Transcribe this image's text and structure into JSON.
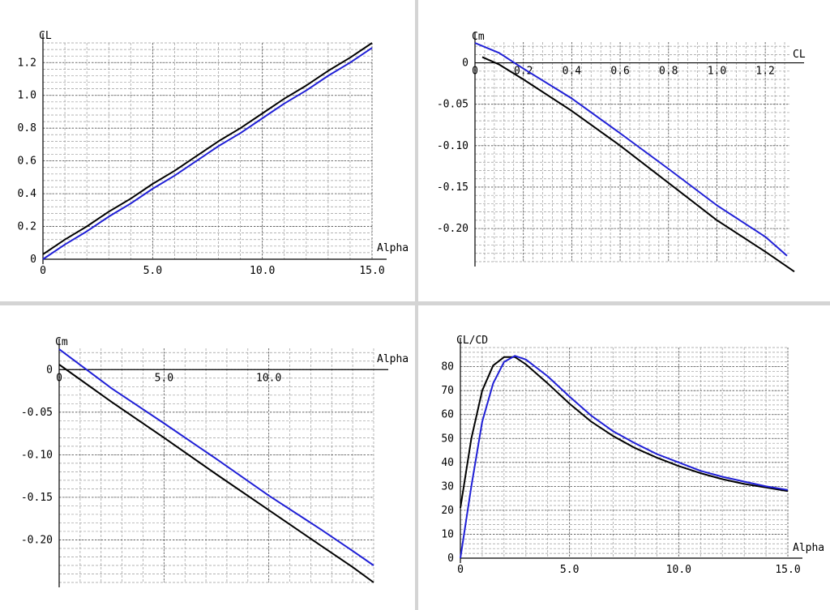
{
  "colors": {
    "series_black": "#000000",
    "series_blue": "#1f1fd6",
    "grid_major": "#555555",
    "grid_minor": "#9a9a9a",
    "background": "#ffffff",
    "separator": "#d4d4d4"
  },
  "chart_data": [
    {
      "id": "cl-alpha",
      "type": "line",
      "xlabel": "Alpha",
      "ylabel": "CL",
      "xlim": [
        0,
        15
      ],
      "ylim": [
        0,
        1.32
      ],
      "x_ticks": [
        0,
        5,
        10,
        15
      ],
      "x_tick_labels": [
        "0",
        "5.0",
        "10.0",
        "15.0"
      ],
      "y_ticks": [
        0,
        0.2,
        0.4,
        0.6,
        0.8,
        1.0,
        1.2
      ],
      "y_tick_labels": [
        "0",
        "0.2",
        "0.4",
        "0.6",
        "0.8",
        "1.0",
        "1.2"
      ],
      "grid": true,
      "series": [
        {
          "color": "#000000",
          "x": [
            0,
            1,
            2,
            3,
            4,
            5,
            6,
            7,
            8,
            9,
            10,
            11,
            12,
            13,
            14,
            15
          ],
          "y": [
            0.03,
            0.12,
            0.2,
            0.29,
            0.37,
            0.46,
            0.54,
            0.63,
            0.72,
            0.8,
            0.89,
            0.98,
            1.06,
            1.15,
            1.23,
            1.32
          ]
        },
        {
          "color": "#1f1fd6",
          "x": [
            0,
            1,
            2,
            3,
            4,
            5,
            6,
            7,
            8,
            9,
            10,
            11,
            12,
            13,
            14,
            15
          ],
          "y": [
            0.0,
            0.09,
            0.17,
            0.26,
            0.34,
            0.43,
            0.51,
            0.6,
            0.69,
            0.77,
            0.86,
            0.95,
            1.03,
            1.12,
            1.2,
            1.29
          ]
        }
      ]
    },
    {
      "id": "cm-cl",
      "type": "line",
      "xlabel": "CL",
      "ylabel": "Cm",
      "xlim": [
        0,
        1.3
      ],
      "ylim": [
        -0.24,
        0.025
      ],
      "x_ticks": [
        0,
        0.2,
        0.4,
        0.6,
        0.8,
        1.0,
        1.2
      ],
      "x_tick_labels": [
        "0",
        "0.2",
        "0.4",
        "0.6",
        "0.8",
        "1.0",
        "1.2"
      ],
      "y_ticks": [
        0,
        -0.05,
        -0.1,
        -0.15,
        -0.2
      ],
      "y_tick_labels": [
        "0",
        "-0.05",
        "-0.10",
        "-0.15",
        "-0.20"
      ],
      "grid": true,
      "series": [
        {
          "color": "#000000",
          "x": [
            0.03,
            0.1,
            0.2,
            0.4,
            0.6,
            0.8,
            1.0,
            1.2,
            1.32
          ],
          "y": [
            0.007,
            -0.002,
            -0.02,
            -0.058,
            -0.1,
            -0.145,
            -0.19,
            -0.228,
            -0.252
          ]
        },
        {
          "color": "#1f1fd6",
          "x": [
            0.0,
            0.1,
            0.2,
            0.4,
            0.6,
            0.8,
            1.0,
            1.2,
            1.29
          ],
          "y": [
            0.024,
            0.012,
            -0.007,
            -0.043,
            -0.085,
            -0.128,
            -0.172,
            -0.21,
            -0.233
          ]
        }
      ]
    },
    {
      "id": "cm-alpha",
      "type": "line",
      "xlabel": "Alpha",
      "ylabel": "Cm",
      "xlim": [
        0,
        15
      ],
      "ylim": [
        -0.25,
        0.025
      ],
      "x_ticks": [
        0,
        5,
        10
      ],
      "x_tick_labels": [
        "0",
        "5.0",
        "10.0"
      ],
      "y_ticks": [
        0,
        -0.05,
        -0.1,
        -0.15,
        -0.2
      ],
      "y_tick_labels": [
        "0",
        "-0.05",
        "-0.10",
        "-0.15",
        "-0.20"
      ],
      "grid": true,
      "series": [
        {
          "color": "#000000",
          "x": [
            0,
            2.5,
            5,
            7.5,
            10,
            12.5,
            14,
            15
          ],
          "y": [
            0.006,
            -0.038,
            -0.08,
            -0.123,
            -0.165,
            -0.207,
            -0.232,
            -0.25
          ]
        },
        {
          "color": "#1f1fd6",
          "x": [
            0,
            2.5,
            5,
            7.5,
            10,
            12.5,
            14,
            15
          ],
          "y": [
            0.024,
            -0.022,
            -0.063,
            -0.105,
            -0.148,
            -0.188,
            -0.213,
            -0.23
          ]
        }
      ]
    },
    {
      "id": "clcd-alpha",
      "type": "line",
      "xlabel": "Alpha",
      "ylabel": "CL/CD",
      "xlim": [
        0,
        15
      ],
      "ylim": [
        0,
        88
      ],
      "x_ticks": [
        0,
        5,
        10,
        15
      ],
      "x_tick_labels": [
        "0",
        "5.0",
        "10.0",
        "15.0"
      ],
      "y_ticks": [
        0,
        10,
        20,
        30,
        40,
        50,
        60,
        70,
        80
      ],
      "y_tick_labels": [
        "0",
        "10",
        "20",
        "30",
        "40",
        "50",
        "60",
        "70",
        "80"
      ],
      "grid": true,
      "series": [
        {
          "color": "#000000",
          "x": [
            0,
            0.5,
            1,
            1.5,
            2,
            2.5,
            3,
            4,
            5,
            6,
            7,
            8,
            9,
            10,
            11,
            12,
            13,
            14,
            15
          ],
          "y": [
            21,
            50,
            70,
            80.5,
            84,
            84,
            81,
            73,
            64.5,
            57,
            51,
            46,
            42,
            38.5,
            35.5,
            33,
            31,
            29.5,
            28
          ]
        },
        {
          "color": "#1f1fd6",
          "x": [
            0,
            0.5,
            1,
            1.5,
            2,
            2.5,
            3,
            4,
            5,
            6,
            7,
            8,
            9,
            10,
            11,
            12,
            13,
            14,
            15
          ],
          "y": [
            0,
            30,
            57,
            73,
            82,
            84.5,
            83,
            76,
            67.5,
            59.5,
            53,
            48,
            43.5,
            40,
            36.5,
            34,
            32,
            30,
            28.5
          ]
        }
      ]
    }
  ]
}
